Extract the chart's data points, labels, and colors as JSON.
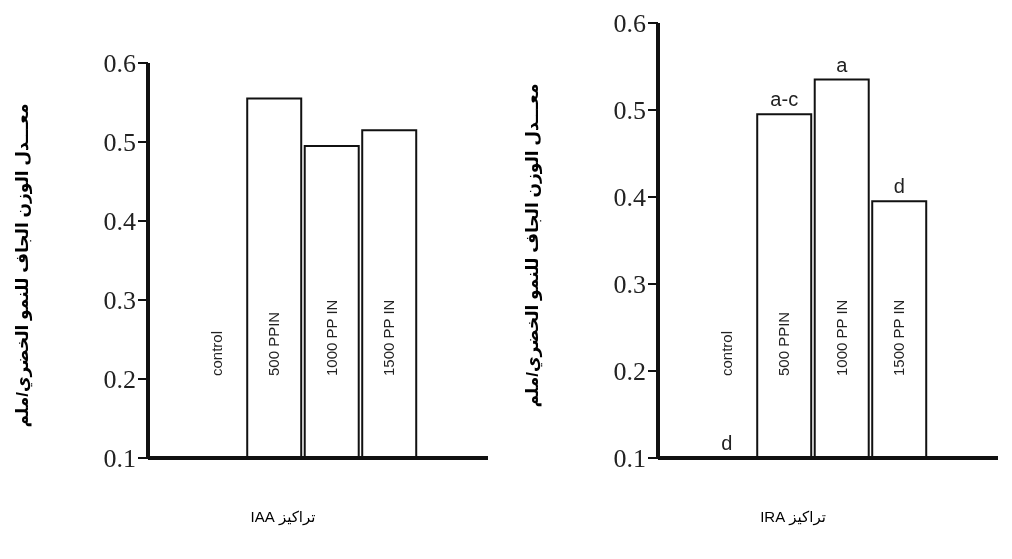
{
  "chart_data": [
    {
      "type": "bar",
      "categories": [
        "control",
        "500 PPIN",
        "1000 PP IN",
        "1500 PP IN"
      ],
      "values": [
        0.1,
        0.555,
        0.495,
        0.515
      ],
      "color": "#ffffff",
      "ylim": [
        0.1,
        0.6
      ],
      "yticks": [
        0.1,
        0.2,
        0.3,
        0.4,
        0.5,
        0.6
      ],
      "xlabel": "تراكيز IAA",
      "ylabel": "معـــدل الوزن الجاف للنمو الخضري/ملم",
      "grid": false,
      "legend": false
    },
    {
      "type": "bar",
      "categories": [
        "control",
        "500 PPIN",
        "1000 PP IN",
        "1500 PP IN"
      ],
      "values": [
        0.1,
        0.495,
        0.535,
        0.395
      ],
      "value_labels": [
        "d",
        "a-c",
        "a",
        "d"
      ],
      "color": "#ffffff",
      "ylim": [
        0.1,
        0.6
      ],
      "yticks": [
        0.1,
        0.2,
        0.3,
        0.4,
        0.5,
        0.6
      ],
      "xlabel": "تراكيز IRA",
      "ylabel": "معـــدل الوزن الجاف للنمو الخضري/ملم",
      "grid": false,
      "legend": false
    }
  ]
}
